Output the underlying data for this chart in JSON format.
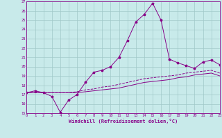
{
  "xlabel": "Windchill (Refroidissement éolien,°C)",
  "xlim": [
    0,
    23
  ],
  "ylim": [
    15,
    27
  ],
  "xticks": [
    0,
    1,
    2,
    3,
    4,
    5,
    6,
    7,
    8,
    9,
    10,
    11,
    12,
    13,
    14,
    15,
    16,
    17,
    18,
    19,
    20,
    21,
    22,
    23
  ],
  "yticks": [
    15,
    16,
    17,
    18,
    19,
    20,
    21,
    22,
    23,
    24,
    25,
    26,
    27
  ],
  "background_color": "#c8eaea",
  "grid_color": "#a0c8c8",
  "line_color": "#880088",
  "line1_x": [
    0,
    1,
    2,
    3,
    4,
    5,
    6,
    7,
    8,
    9,
    10,
    11,
    12,
    13,
    14,
    15,
    16,
    17,
    18,
    19,
    20,
    21,
    22,
    23
  ],
  "line1_y": [
    17.2,
    17.4,
    17.2,
    16.8,
    15.1,
    16.4,
    17.0,
    18.3,
    19.4,
    19.6,
    20.0,
    21.0,
    22.8,
    24.8,
    25.6,
    26.8,
    25.0,
    20.8,
    20.4,
    20.1,
    19.8,
    20.5,
    20.7,
    20.2
  ],
  "line2_x": [
    0,
    1,
    2,
    3,
    4,
    5,
    6,
    7,
    8,
    9,
    10,
    11,
    12,
    13,
    14,
    15,
    16,
    17,
    18,
    19,
    20,
    21,
    22,
    23
  ],
  "line2_y": [
    17.2,
    17.2,
    17.2,
    17.2,
    17.2,
    17.2,
    17.3,
    17.5,
    17.6,
    17.8,
    17.9,
    18.1,
    18.3,
    18.5,
    18.7,
    18.8,
    18.9,
    19.0,
    19.1,
    19.3,
    19.4,
    19.5,
    19.6,
    19.3
  ],
  "line3_x": [
    0,
    1,
    2,
    3,
    4,
    5,
    6,
    7,
    8,
    9,
    10,
    11,
    12,
    13,
    14,
    15,
    16,
    17,
    18,
    19,
    20,
    21,
    22,
    23
  ],
  "line3_y": [
    17.2,
    17.2,
    17.2,
    17.2,
    17.2,
    17.2,
    17.2,
    17.3,
    17.4,
    17.5,
    17.6,
    17.7,
    17.9,
    18.1,
    18.3,
    18.4,
    18.5,
    18.6,
    18.8,
    18.9,
    19.1,
    19.2,
    19.3,
    19.0
  ]
}
